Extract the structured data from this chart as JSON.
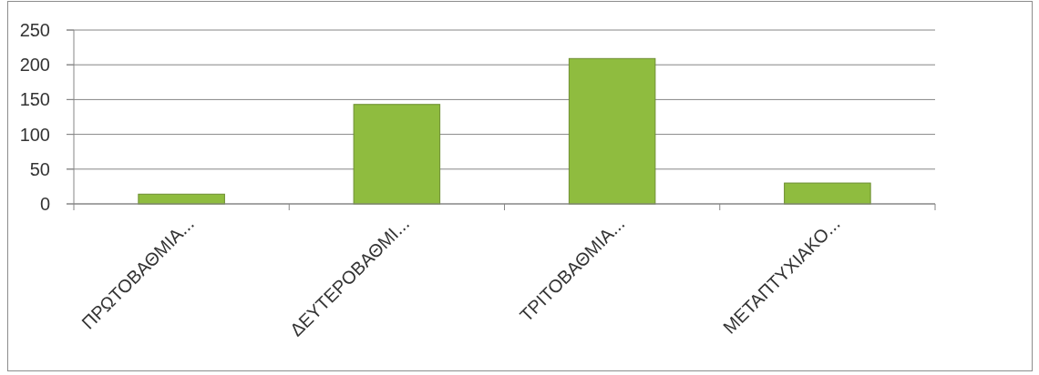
{
  "chart_data": {
    "type": "bar",
    "categories": [
      "ΠΡΩΤΟΒΑΘΜΙΑ...",
      "ΔΕΥΤΕΡΟΒΑΘΜΙ...",
      "ΤΡΙΤΟΒΑΘΜΙΑ...",
      "ΜΕΤΑΠΤΥΧΙΑΚΟ..."
    ],
    "values": [
      14,
      143,
      209,
      30
    ],
    "color": "#8fbc3f",
    "ylim": [
      0,
      250
    ],
    "yticks": [
      0,
      50,
      100,
      150,
      200,
      250
    ],
    "grid": "y"
  }
}
